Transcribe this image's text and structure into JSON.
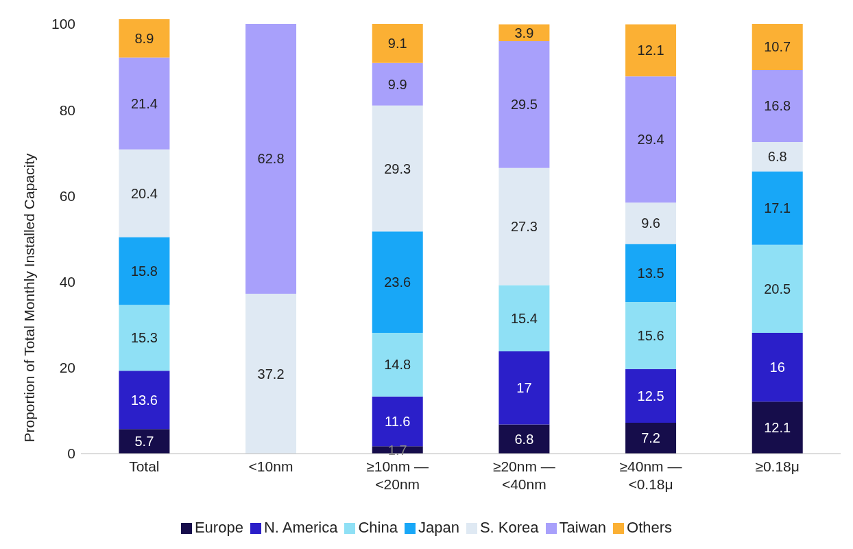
{
  "chart_data": {
    "type": "bar",
    "stacked": true,
    "ylabel": "Proportion of Total Monthly Installed Capacity",
    "categories": [
      "Total",
      "<10nm",
      "≥10nm —\n<20nm",
      "≥20nm —\n<40nm",
      "≥40nm —\n<0.18μ",
      "≥0.18μ"
    ],
    "series": [
      {
        "name": "Europe",
        "color": "#160d4b",
        "values": [
          5.7,
          null,
          1.7,
          6.8,
          7.2,
          12.1
        ]
      },
      {
        "name": "N. America",
        "color": "#2b1fc9",
        "values": [
          13.6,
          null,
          11.6,
          17,
          12.5,
          16
        ]
      },
      {
        "name": "China",
        "color": "#8fe0f5",
        "values": [
          15.3,
          null,
          14.8,
          15.4,
          15.6,
          20.5
        ]
      },
      {
        "name": "Japan",
        "color": "#18a7f7",
        "values": [
          15.8,
          null,
          23.6,
          null,
          13.5,
          17.1
        ]
      },
      {
        "name": "S. Korea",
        "color": "#dfe9f3",
        "values": [
          20.4,
          37.2,
          29.3,
          27.3,
          9.6,
          6.8
        ]
      },
      {
        "name": "Taiwan",
        "color": "#a8a0fb",
        "values": [
          21.4,
          62.8,
          9.9,
          29.5,
          29.4,
          16.8
        ]
      },
      {
        "name": "Others",
        "color": "#fbb034",
        "values": [
          8.9,
          null,
          9.1,
          3.9,
          12.1,
          10.7
        ]
      }
    ],
    "ylim": [
      0,
      101.1
    ],
    "yticks": [
      0,
      20,
      40,
      60,
      80,
      100
    ],
    "grid": false,
    "legend": "bottom",
    "data_labels": true
  }
}
